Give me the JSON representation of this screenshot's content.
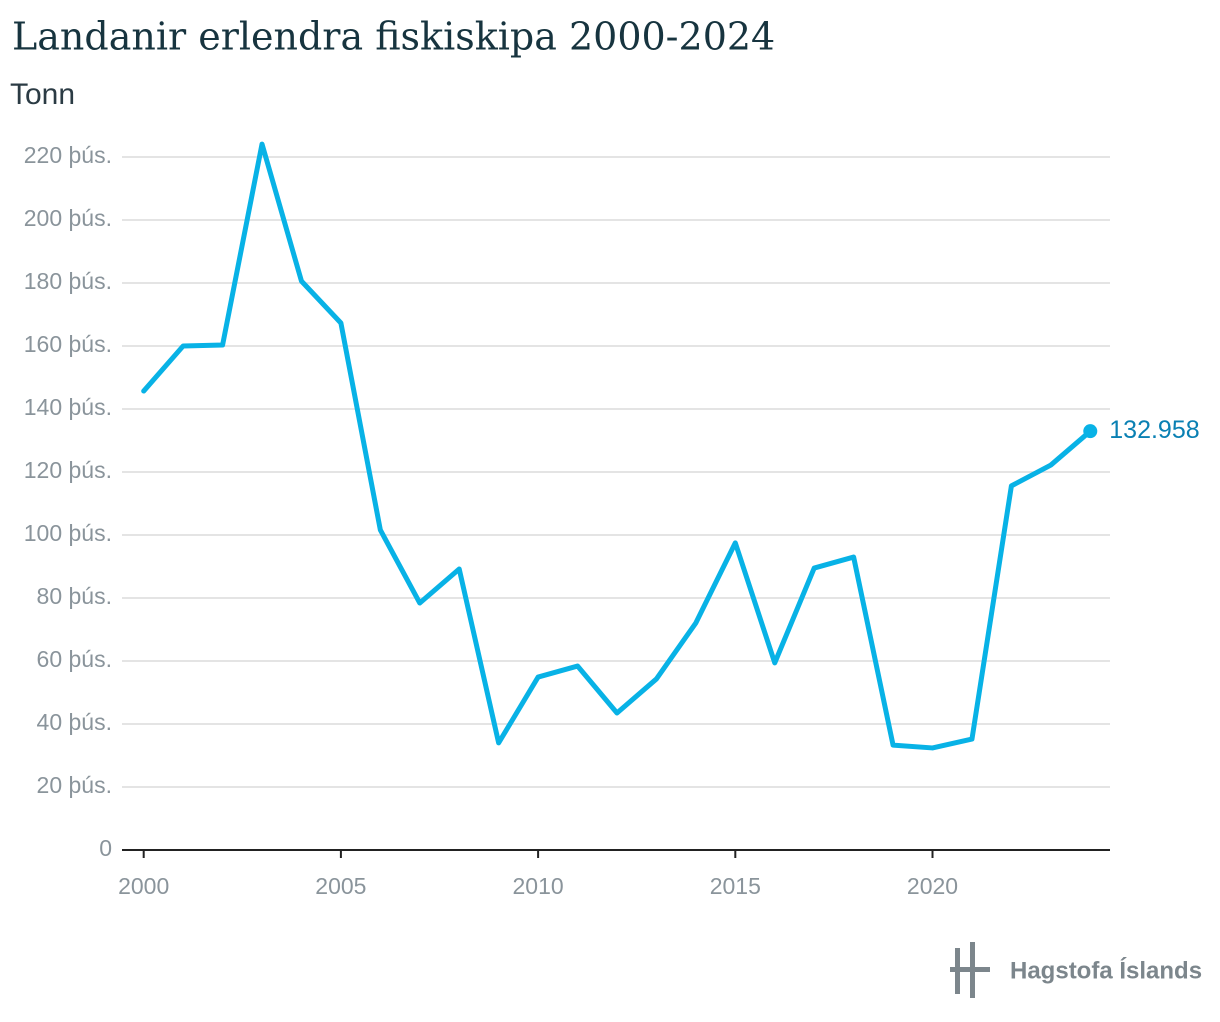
{
  "chart_data": {
    "type": "line",
    "title": "Landanir erlendra fiskiskipa 2000-2024",
    "subtitle": "Tonn",
    "source": "Hagstofa Íslands",
    "x": [
      2000,
      2001,
      2002,
      2003,
      2004,
      2005,
      2006,
      2007,
      2008,
      2009,
      2010,
      2011,
      2012,
      2013,
      2014,
      2015,
      2016,
      2017,
      2018,
      2019,
      2020,
      2021,
      2022,
      2023,
      2024
    ],
    "series": [
      {
        "name": "Landanir erlendra fiskiskipa",
        "color": "#08b2e6",
        "values": [
          145700,
          160000,
          160300,
          224100,
          180600,
          167300,
          101600,
          78400,
          89200,
          34000,
          54900,
          58400,
          43500,
          54300,
          72100,
          97500,
          59400,
          89500,
          93000,
          33300,
          32400,
          35200,
          115600,
          122200,
          132958
        ],
        "value_labels": [
          null,
          null,
          null,
          null,
          null,
          null,
          null,
          null,
          null,
          null,
          null,
          null,
          null,
          null,
          null,
          null,
          null,
          null,
          null,
          null,
          null,
          null,
          null,
          null,
          "132.958"
        ]
      }
    ],
    "value_label_color": "#0a80b3",
    "xlim": [
      1999.45,
      2024.5
    ],
    "xticks": [
      2000,
      2005,
      2010,
      2015,
      2020
    ],
    "ylim": [
      0,
      220000
    ],
    "yticks": [
      0,
      {
        "value": 20000,
        "label": "20 þús."
      },
      {
        "value": 40000,
        "label": "40 þús."
      },
      {
        "value": 60000,
        "label": "60 þús."
      },
      {
        "value": 80000,
        "label": "80 þús."
      },
      {
        "value": 100000,
        "label": "100 þús."
      },
      {
        "value": 120000,
        "label": "120 þús."
      },
      {
        "value": 140000,
        "label": "140 þús."
      },
      {
        "value": 160000,
        "label": "160 þús."
      },
      {
        "value": 180000,
        "label": "180 þús."
      },
      {
        "value": 200000,
        "label": "200 þús."
      },
      {
        "value": 220000,
        "label": "220 þús."
      }
    ],
    "grid": true
  }
}
